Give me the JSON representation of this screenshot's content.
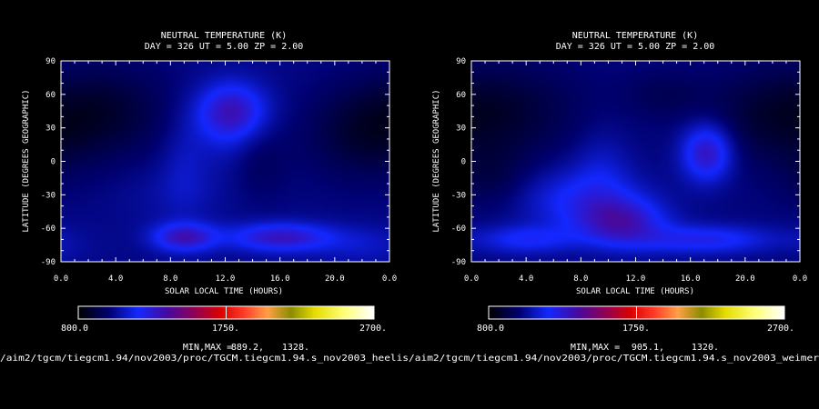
{
  "chart_data": [
    {
      "type": "heatmap",
      "title": "NEUTRAL TEMPERATURE (K)",
      "subtitle": "DAY = 326  UT =  5.00  ZP =   2.00",
      "xlabel": "SOLAR LOCAL TIME (HOURS)",
      "ylabel": "LATITUDE (DEGREES GEOGRAPHIC)",
      "x_ticks": [
        "0.0",
        "4.0",
        "8.0",
        "12.0",
        "16.0",
        "20.0",
        "0.0"
      ],
      "y_ticks": [
        "90",
        "60",
        "30",
        "0",
        "-30",
        "-60",
        "-90"
      ],
      "xlim": [
        0,
        24
      ],
      "ylim": [
        -90,
        90
      ],
      "colorbar": {
        "min_label": "800.0",
        "mid_label": "1750.",
        "max_label": "2700.",
        "range": [
          800,
          2700
        ]
      },
      "minmax_label": "MIN,MAX =",
      "min_value": "889.2,",
      "max_value": "1328.",
      "file_path": "/aim2/tgcm/tiegcm1.94/nov2003/proc/TGCM.tiegcm1.94.s_nov2003_heelis",
      "background": 1020,
      "features": [
        {
          "lt": 12.5,
          "lat": 45,
          "value": 1300,
          "slt": 1.8,
          "slat": 18
        },
        {
          "lt": 12.0,
          "lat": 25,
          "value": 1080,
          "slt": 1.5,
          "slat": 25
        },
        {
          "lt": 9.0,
          "lat": -68,
          "value": 1328,
          "slt": 1.6,
          "slat": 9
        },
        {
          "lt": 16.0,
          "lat": -68,
          "value": 1310,
          "slt": 2.6,
          "slat": 9
        },
        {
          "lt": 9.0,
          "lat": 0,
          "value": 1090,
          "slt": 1.2,
          "slat": 30
        },
        {
          "lt": 8.5,
          "lat": -30,
          "value": 1060,
          "slt": 2.8,
          "slat": 20
        },
        {
          "lt": 3.0,
          "lat": 45,
          "value": 889,
          "slt": 3.5,
          "slat": 30
        },
        {
          "lt": 22.0,
          "lat": 25,
          "value": 900,
          "slt": 3.0,
          "slat": 30
        },
        {
          "lt": 14.5,
          "lat": 0,
          "value": 960,
          "slt": 1.5,
          "slat": 25
        },
        {
          "lt": 22.0,
          "lat": -75,
          "value": 1100,
          "slt": 2.5,
          "slat": 12
        }
      ]
    },
    {
      "type": "heatmap",
      "title": "NEUTRAL TEMPERATURE (K)",
      "subtitle": "DAY = 326  UT =  5.00  ZP =   2.00",
      "xlabel": "SOLAR LOCAL TIME (HOURS)",
      "ylabel": "LATITUDE (DEGREES GEOGRAPHIC)",
      "x_ticks": [
        "0.0",
        "4.0",
        "8.0",
        "12.0",
        "16.0",
        "20.0",
        "0.0"
      ],
      "y_ticks": [
        "90",
        "60",
        "30",
        "0",
        "-30",
        "-60",
        "-90"
      ],
      "xlim": [
        0,
        24
      ],
      "ylim": [
        -90,
        90
      ],
      "colorbar": {
        "min_label": "800.0",
        "mid_label": "1750.",
        "max_label": "2700.",
        "range": [
          800,
          2700
        ]
      },
      "minmax_label": "MIN,MAX =",
      "min_value": "905.1,",
      "max_value": "1320.",
      "file_path": "/aim2/tgcm/tiegcm1.94/nov2003/proc/TGCM.tiegcm1.94.s_nov2003_weimer",
      "background": 1010,
      "features": [
        {
          "lt": 17.2,
          "lat": 8,
          "value": 1320,
          "slt": 1.3,
          "slat": 18
        },
        {
          "lt": 11.0,
          "lat": -55,
          "value": 1290,
          "slt": 2.2,
          "slat": 15
        },
        {
          "lt": 8.0,
          "lat": -35,
          "value": 1180,
          "slt": 3.2,
          "slat": 20
        },
        {
          "lt": 17.0,
          "lat": -70,
          "value": 1220,
          "slt": 3.5,
          "slat": 9
        },
        {
          "lt": 4.0,
          "lat": -70,
          "value": 1180,
          "slt": 2.5,
          "slat": 9
        },
        {
          "lt": 9.5,
          "lat": -5,
          "value": 1090,
          "slt": 1.5,
          "slat": 25
        },
        {
          "lt": 2.5,
          "lat": 45,
          "value": 905,
          "slt": 4.0,
          "slat": 30
        },
        {
          "lt": 21.5,
          "lat": 40,
          "value": 920,
          "slt": 3.5,
          "slat": 30
        },
        {
          "lt": 1.5,
          "lat": -15,
          "value": 930,
          "slt": 2.0,
          "slat": 20
        },
        {
          "lt": 14.0,
          "lat": 60,
          "value": 950,
          "slt": 2.0,
          "slat": 15
        }
      ]
    }
  ]
}
